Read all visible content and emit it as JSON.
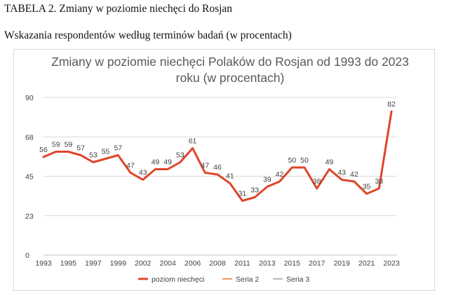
{
  "document": {
    "table_heading": "TABELA 2. Zmiany w poziomie niechęci do Rosjan",
    "subheading": "Wskazania respondentów według terminów badań (w procentach)"
  },
  "chart_data": {
    "type": "line",
    "title_lines": [
      "Zmiany w poziomie niechęci Polaków do Rosjan od 1993 do 2023",
      "roku (w procentach)"
    ],
    "x_tick_labels": [
      "1993",
      "1995",
      "1997",
      "1999",
      "2002",
      "2004",
      "2006",
      "2008",
      "2011",
      "2013",
      "2015",
      "2017",
      "2019",
      "2021",
      "2023"
    ],
    "y_tick_labels": [
      "0",
      "23",
      "45",
      "68",
      "90"
    ],
    "y_ticks": [
      0,
      22.5,
      45,
      67.5,
      90
    ],
    "ylim": [
      0,
      90
    ],
    "series": [
      {
        "name": "poziom niechęci",
        "color": "#e0452b",
        "values": [
          56,
          59,
          59,
          57,
          53,
          55,
          57,
          47,
          43,
          49,
          49,
          53,
          61,
          47,
          46,
          41,
          31,
          33,
          39,
          42,
          50,
          50,
          38,
          49,
          43,
          42,
          35,
          38,
          82
        ],
        "labels": [
          "56",
          "59",
          "59",
          "57",
          "53",
          "55",
          "57",
          "47",
          "43",
          "49",
          "49",
          "53",
          "61",
          "47",
          "46",
          "41",
          "31",
          "33",
          "39",
          "42",
          "50",
          "50",
          "38",
          "49",
          "43",
          "42",
          "35",
          "38",
          "82"
        ]
      }
    ],
    "legend": [
      {
        "name": "poziom niechęci",
        "color": "#e0452b"
      },
      {
        "name": "Seria 2",
        "color": "#ed7d31"
      },
      {
        "name": "Seria 3",
        "color": "#a5a5a5"
      }
    ],
    "legend_position": "bottom",
    "grid": "horizontal"
  }
}
